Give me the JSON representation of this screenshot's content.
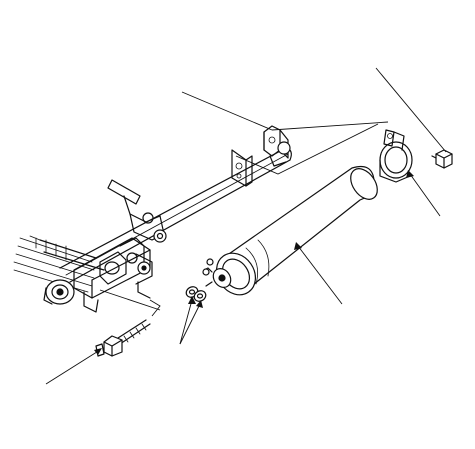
{
  "diagram": {
    "kind": "exploded-parts-illustration",
    "colors": {
      "line": "#111111",
      "background": "#ffffff"
    },
    "parts": [
      {
        "id": "frame-rail",
        "icon": "frame-rail-drawing"
      },
      {
        "id": "leaf-spring",
        "icon": "leaf-spring-drawing"
      },
      {
        "id": "shock-absorber",
        "icon": "shock-absorber-drawing"
      },
      {
        "id": "upper-mount-bracket",
        "icon": "mount-bracket-drawing"
      },
      {
        "id": "mounting-clamp",
        "icon": "clamp-ring-drawing"
      },
      {
        "id": "upper-nut",
        "icon": "nut-drawing"
      },
      {
        "id": "lower-bolt",
        "icon": "bolt-drawing"
      },
      {
        "id": "washers",
        "icon": "washer-drawing"
      }
    ],
    "callouts": [
      {
        "id": "callout-frame",
        "target": "frame-rail"
      },
      {
        "id": "callout-nut",
        "target": "upper-nut"
      },
      {
        "id": "callout-clamp",
        "target": "mounting-clamp"
      },
      {
        "id": "callout-shock",
        "target": "shock-absorber"
      },
      {
        "id": "callout-washer-a",
        "target": "washers"
      },
      {
        "id": "callout-washer-b",
        "target": "washers"
      },
      {
        "id": "callout-bolt",
        "target": "lower-bolt"
      }
    ]
  }
}
